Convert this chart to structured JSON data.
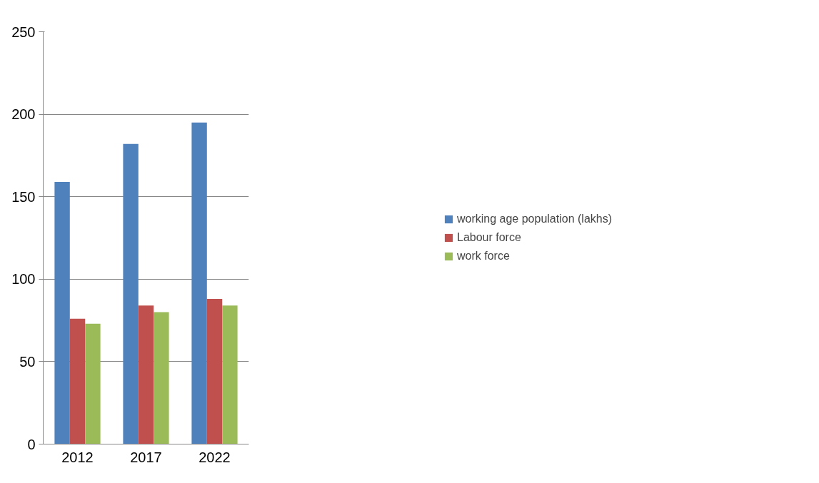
{
  "chart_data": {
    "type": "bar",
    "categories": [
      "2012",
      "2017",
      "2022"
    ],
    "series": [
      {
        "name": "working age population (lakhs)",
        "color": "#4f81bd",
        "values": [
          159,
          182,
          195
        ]
      },
      {
        "name": "Labour force",
        "color": "#c0504d",
        "values": [
          76,
          84,
          88
        ]
      },
      {
        "name": "work force",
        "color": "#9bbb59",
        "values": [
          73,
          80,
          84
        ]
      }
    ],
    "ylim": [
      0,
      250
    ],
    "yticks": [
      0,
      50,
      100,
      150,
      200,
      250
    ],
    "grid": "y",
    "legend": "right"
  }
}
